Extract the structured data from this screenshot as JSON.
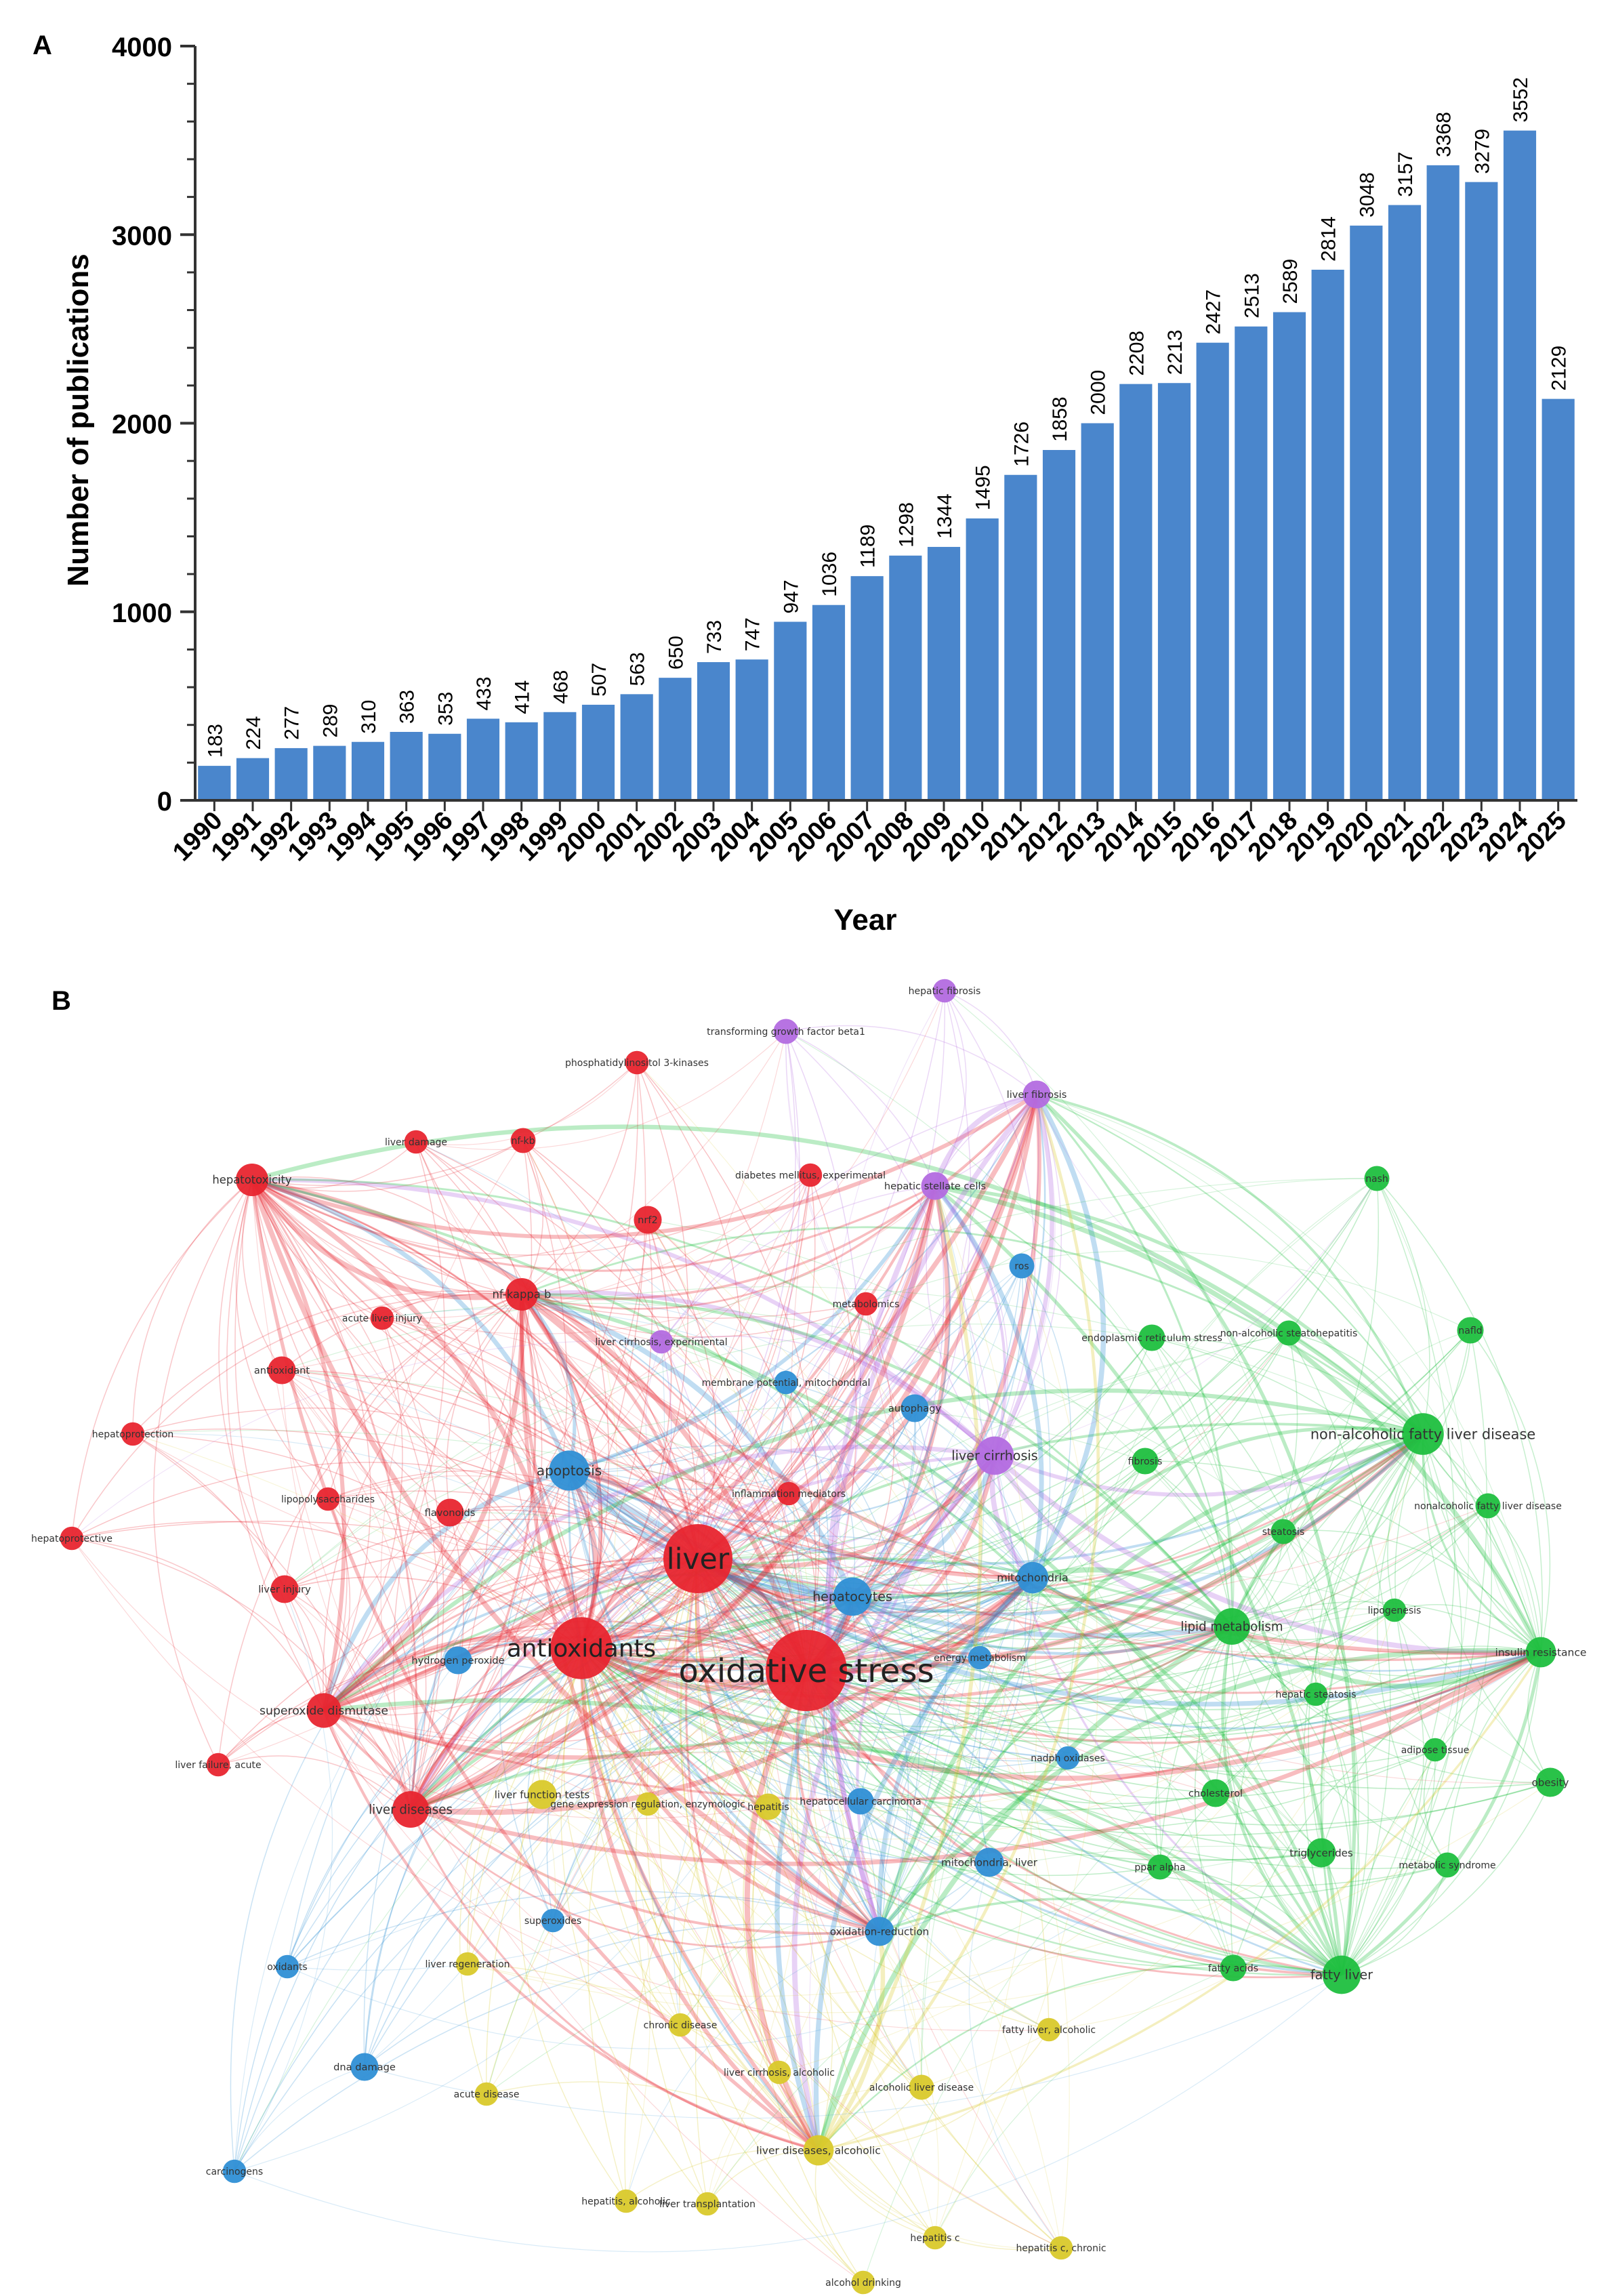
{
  "panel_labels": {
    "a": "A",
    "b": "B"
  },
  "chart_data": [
    {
      "type": "bar",
      "title": "",
      "xlabel": "Year",
      "ylabel": "Number of publications",
      "ylim": [
        0,
        4000
      ],
      "yticks": [
        0,
        1000,
        2000,
        3000,
        4000
      ],
      "bar_color": "#4a86cc",
      "categories": [
        "1990",
        "1991",
        "1992",
        "1993",
        "1994",
        "1995",
        "1996",
        "1997",
        "1998",
        "1999",
        "2000",
        "2001",
        "2002",
        "2003",
        "2004",
        "2005",
        "2006",
        "2007",
        "2008",
        "2009",
        "2010",
        "2011",
        "2012",
        "2013",
        "2014",
        "2015",
        "2016",
        "2017",
        "2018",
        "2019",
        "2020",
        "2021",
        "2022",
        "2023",
        "2024",
        "2025"
      ],
      "values": [
        183,
        224,
        277,
        289,
        310,
        363,
        353,
        433,
        414,
        468,
        507,
        563,
        650,
        733,
        747,
        947,
        1036,
        1189,
        1298,
        1344,
        1495,
        1726,
        1858,
        2000,
        2208,
        2213,
        2427,
        2513,
        2589,
        2814,
        3048,
        3157,
        3368,
        3279,
        3552,
        2129
      ],
      "data_labels": [
        "183",
        "224",
        "277",
        "289",
        "310",
        "363",
        "353",
        "433",
        "414",
        "468",
        "507",
        "563",
        "650",
        "733",
        "747",
        "947",
        "1036",
        "1189",
        "1298",
        "1344",
        "1495",
        "1726",
        "1858",
        "2000",
        "2208",
        "2213",
        "2427",
        "2513",
        "2589",
        "2814",
        "3048",
        "3157",
        "3368",
        "3279",
        "3552",
        "2129"
      ]
    },
    {
      "type": "network",
      "title": "",
      "clusters": {
        "red": "#e8252f",
        "blue": "#2f8fd5",
        "green": "#1fbf3f",
        "purple": "#b36be0",
        "yellow": "#d9c92b"
      },
      "nodes": [
        {
          "label": "oxidative stress",
          "cluster": "red",
          "weight": 100
        },
        {
          "label": "liver",
          "cluster": "red",
          "weight": 70
        },
        {
          "label": "antioxidants",
          "cluster": "red",
          "weight": 55
        },
        {
          "label": "apoptosis",
          "cluster": "blue",
          "weight": 20
        },
        {
          "label": "hepatocytes",
          "cluster": "blue",
          "weight": 18
        },
        {
          "label": "liver cirrhosis",
          "cluster": "purple",
          "weight": 18
        },
        {
          "label": "non-alcoholic fatty liver disease",
          "cluster": "green",
          "weight": 22
        },
        {
          "label": "lipid metabolism",
          "cluster": "green",
          "weight": 16
        },
        {
          "label": "fatty liver",
          "cluster": "green",
          "weight": 18
        },
        {
          "label": "insulin resistance",
          "cluster": "green",
          "weight": 10
        },
        {
          "label": "liver diseases",
          "cluster": "red",
          "weight": 16
        },
        {
          "label": "superoxide dismutase",
          "cluster": "red",
          "weight": 14
        },
        {
          "label": "hepatotoxicity",
          "cluster": "red",
          "weight": 12
        },
        {
          "label": "nf-kappa b",
          "cluster": "red",
          "weight": 12
        },
        {
          "label": "mitochondria",
          "cluster": "blue",
          "weight": 11
        },
        {
          "label": "oxidation-reduction",
          "cluster": "blue",
          "weight": 9
        },
        {
          "label": "mitochondria, liver",
          "cluster": "blue",
          "weight": 9
        },
        {
          "label": "liver diseases, alcoholic",
          "cluster": "yellow",
          "weight": 10
        },
        {
          "label": "liver function tests",
          "cluster": "yellow",
          "weight": 9
        },
        {
          "label": "hepatitis",
          "cluster": "yellow",
          "weight": 7
        },
        {
          "label": "hepatocellular carcinoma",
          "cluster": "blue",
          "weight": 7
        },
        {
          "label": "liver fibrosis",
          "cluster": "purple",
          "weight": 8
        },
        {
          "label": "hepatic stellate cells",
          "cluster": "purple",
          "weight": 8
        },
        {
          "label": "transforming growth factor beta1",
          "cluster": "purple",
          "weight": 6
        },
        {
          "label": "hepatic fibrosis",
          "cluster": "purple",
          "weight": 5
        },
        {
          "label": "autophagy",
          "cluster": "blue",
          "weight": 8
        },
        {
          "label": "flavonoids",
          "cluster": "red",
          "weight": 8
        },
        {
          "label": "antioxidant",
          "cluster": "red",
          "weight": 8
        },
        {
          "label": "liver injury",
          "cluster": "red",
          "weight": 8
        },
        {
          "label": "nrf2",
          "cluster": "red",
          "weight": 8
        },
        {
          "label": "fibrosis",
          "cluster": "green",
          "weight": 7
        },
        {
          "label": "steatosis",
          "cluster": "green",
          "weight": 6
        },
        {
          "label": "cholesterol",
          "cluster": "green",
          "weight": 8
        },
        {
          "label": "triglycerides",
          "cluster": "green",
          "weight": 9
        },
        {
          "label": "obesity",
          "cluster": "green",
          "weight": 9
        },
        {
          "label": "nafld",
          "cluster": "green",
          "weight": 7
        },
        {
          "label": "nash",
          "cluster": "green",
          "weight": 6
        },
        {
          "label": "endoplasmic reticulum stress",
          "cluster": "green",
          "weight": 7
        },
        {
          "label": "non-alcoholic steatohepatitis",
          "cluster": "green",
          "weight": 6
        },
        {
          "label": "nonalcoholic fatty liver disease",
          "cluster": "green",
          "weight": 6
        },
        {
          "label": "lipogenesis",
          "cluster": "green",
          "weight": 5
        },
        {
          "label": "hepatic steatosis",
          "cluster": "green",
          "weight": 5
        },
        {
          "label": "adipose tissue",
          "cluster": "green",
          "weight": 5
        },
        {
          "label": "metabolic syndrome",
          "cluster": "green",
          "weight": 6
        },
        {
          "label": "fatty acids",
          "cluster": "green",
          "weight": 7
        },
        {
          "label": "ppar alpha",
          "cluster": "green",
          "weight": 6
        },
        {
          "label": "hydrogen peroxide",
          "cluster": "blue",
          "weight": 8
        },
        {
          "label": "dna damage",
          "cluster": "blue",
          "weight": 8
        },
        {
          "label": "ros",
          "cluster": "blue",
          "weight": 6
        },
        {
          "label": "energy metabolism",
          "cluster": "blue",
          "weight": 5
        },
        {
          "label": "nadph oxidases",
          "cluster": "blue",
          "weight": 5
        },
        {
          "label": "oxidants",
          "cluster": "blue",
          "weight": 5
        },
        {
          "label": "carcinogens",
          "cluster": "blue",
          "weight": 5
        },
        {
          "label": "superoxides",
          "cluster": "blue",
          "weight": 5
        },
        {
          "label": "membrane potential, mitochondrial",
          "cluster": "blue",
          "weight": 5
        },
        {
          "label": "liver cirrhosis, experimental",
          "cluster": "purple",
          "weight": 5
        },
        {
          "label": "inflammation mediators",
          "cluster": "red",
          "weight": 5
        },
        {
          "label": "metabolomics",
          "cluster": "red",
          "weight": 5
        },
        {
          "label": "diabetes mellitus, experimental",
          "cluster": "red",
          "weight": 5
        },
        {
          "label": "phosphatidylinositol 3-kinases",
          "cluster": "red",
          "weight": 5
        },
        {
          "label": "liver damage",
          "cluster": "red",
          "weight": 5
        },
        {
          "label": "nf-kb",
          "cluster": "red",
          "weight": 6
        },
        {
          "label": "acute liver injury",
          "cluster": "red",
          "weight": 5
        },
        {
          "label": "hepatoprotection",
          "cluster": "red",
          "weight": 5
        },
        {
          "label": "hepatoprotective",
          "cluster": "red",
          "weight": 5
        },
        {
          "label": "lipopolysaccharides",
          "cluster": "red",
          "weight": 5
        },
        {
          "label": "liver failure, acute",
          "cluster": "red",
          "weight": 5
        },
        {
          "label": "gene expression regulation, enzymologic",
          "cluster": "yellow",
          "weight": 5
        },
        {
          "label": "liver regeneration",
          "cluster": "yellow",
          "weight": 5
        },
        {
          "label": "chronic disease",
          "cluster": "yellow",
          "weight": 5
        },
        {
          "label": "acute disease",
          "cluster": "yellow",
          "weight": 5
        },
        {
          "label": "fatty liver, alcoholic",
          "cluster": "yellow",
          "weight": 5
        },
        {
          "label": "liver cirrhosis, alcoholic",
          "cluster": "yellow",
          "weight": 5
        },
        {
          "label": "alcoholic liver disease",
          "cluster": "yellow",
          "weight": 6
        },
        {
          "label": "hepatitis, alcoholic",
          "cluster": "yellow",
          "weight": 5
        },
        {
          "label": "liver transplantation",
          "cluster": "yellow",
          "weight": 5
        },
        {
          "label": "hepatitis c",
          "cluster": "yellow",
          "weight": 5
        },
        {
          "label": "hepatitis c, chronic",
          "cluster": "yellow",
          "weight": 5
        },
        {
          "label": "alcohol drinking",
          "cluster": "yellow",
          "weight": 5
        }
      ]
    }
  ]
}
